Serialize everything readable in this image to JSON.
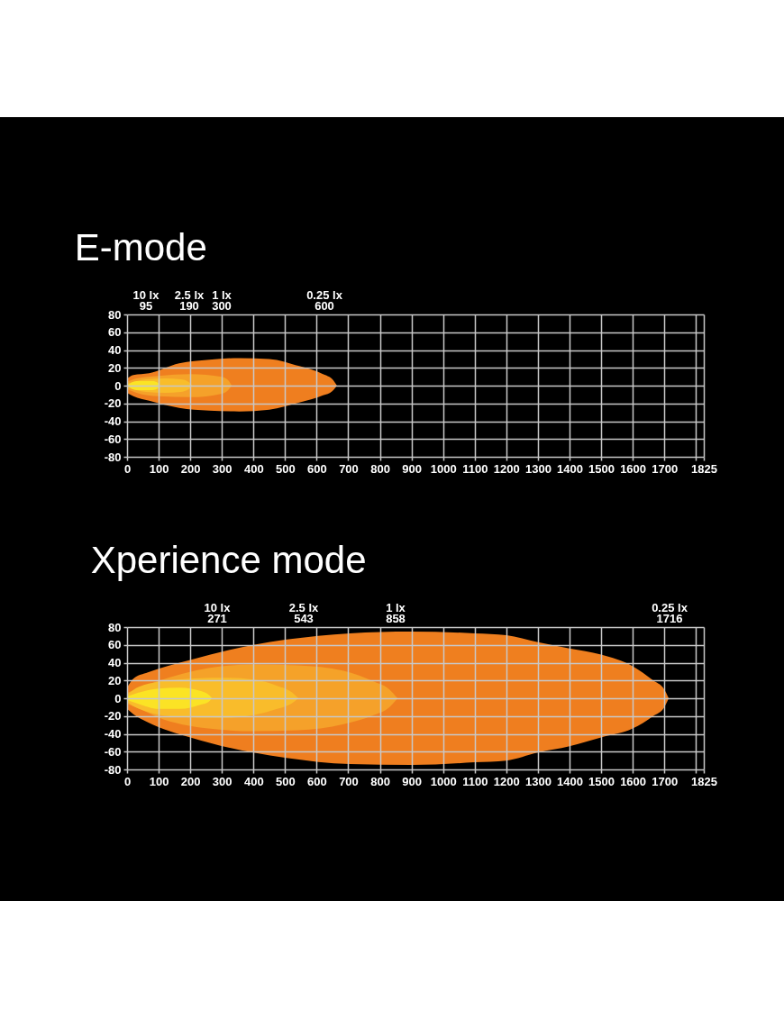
{
  "chart_data": [
    {
      "type": "area",
      "title": "E-mode",
      "series": [
        {
          "color": "#ef7f1f",
          "x": [
            0,
            20,
            70,
            165,
            260,
            355,
            450,
            545,
            620,
            650,
            664
          ],
          "values": [
            8,
            12,
            14,
            25,
            29,
            31,
            30,
            22,
            13,
            7,
            0
          ]
        },
        {
          "color": "#f5a229",
          "x": [
            0,
            30,
            100,
            200,
            300,
            320,
            331
          ],
          "values": [
            4,
            8,
            11,
            13,
            10,
            6,
            0
          ]
        },
        {
          "color": "#f9bd2a",
          "x": [
            0,
            60,
            120,
            170,
            195,
            207
          ],
          "values": [
            2,
            7,
            8,
            7,
            4,
            0
          ]
        },
        {
          "color": "#fbe424",
          "x": [
            0,
            30,
            80,
            98,
            103
          ],
          "values": [
            0,
            5,
            5,
            3,
            0
          ]
        },
        {
          "color": "#ef7e1f",
          "x": [
            0,
            20,
            70,
            165,
            260,
            355,
            450,
            545,
            620,
            650,
            664
          ],
          "values": [
            -8,
            -12,
            -17,
            -25,
            -28,
            -29,
            -27,
            -19,
            -11,
            -6,
            0
          ]
        },
        {
          "color": "#f5a12a",
          "x": [
            0,
            30,
            100,
            200,
            300,
            320,
            331
          ],
          "values": [
            -4,
            -8,
            -12,
            -13,
            -9,
            -5,
            0
          ]
        },
        {
          "color": "#f9bc2b",
          "x": [
            0,
            60,
            120,
            170,
            195,
            207
          ],
          "values": [
            -2,
            -7,
            -8,
            -7,
            -4,
            0
          ]
        },
        {
          "color": "#fbe325",
          "x": [
            0,
            30,
            80,
            98,
            103
          ],
          "values": [
            0,
            -5,
            -5,
            -3,
            0
          ]
        }
      ],
      "xlim": [
        0,
        1825
      ],
      "ylim": [
        -80,
        80
      ],
      "xticks": [
        0,
        100,
        200,
        300,
        400,
        500,
        600,
        700,
        800,
        900,
        1000,
        1100,
        1200,
        1300,
        1400,
        1500,
        1600,
        1700,
        {
          "value": 1800,
          "label": null
        },
        1825
      ],
      "yticks": [
        -80,
        -60,
        -40,
        -20,
        0,
        20,
        40,
        60,
        80
      ],
      "grid": true,
      "annotations": [
        "10 lx\n95",
        "2.5 lx\n190",
        "1 lx\n300",
        "0.25 lx\n600"
      ]
    },
    {
      "type": "area",
      "title": "Xperience mode",
      "series": [
        {
          "color": "#ef7f1f",
          "x": [
            0,
            20,
            66,
            200,
            400,
            505,
            705,
            900,
            1100,
            1200,
            1300,
            1400,
            1500,
            1600,
            1665,
            1700,
            1714
          ],
          "values": [
            12,
            22,
            29,
            43,
            60,
            66,
            73,
            75,
            73,
            71,
            63,
            56,
            49,
            36,
            20,
            10,
            0
          ]
        },
        {
          "color": "#f5a229",
          "x": [
            0,
            40,
            95,
            257,
            400,
            540,
            685,
            780,
            830,
            856
          ],
          "values": [
            6,
            12,
            19,
            34,
            38,
            37,
            31,
            19,
            10,
            0
          ]
        },
        {
          "color": "#f9bd2a",
          "x": [
            0,
            38,
            160,
            305,
            400,
            475,
            520,
            542
          ],
          "values": [
            4,
            13,
            21,
            23,
            21,
            14,
            7,
            0
          ]
        },
        {
          "color": "#fbe424",
          "x": [
            0,
            34,
            100,
            167,
            234,
            258,
            269
          ],
          "values": [
            2,
            6,
            11,
            12,
            8,
            4,
            0
          ]
        },
        {
          "color": "#ef7e1f",
          "x": [
            0,
            20,
            66,
            200,
            400,
            505,
            705,
            900,
            1100,
            1200,
            1300,
            1400,
            1500,
            1600,
            1665,
            1700,
            1714
          ],
          "values": [
            -12,
            -18,
            -27,
            -44,
            -61,
            -67,
            -74,
            -75,
            -72,
            -70,
            -61,
            -54,
            -44,
            -34,
            -20,
            -10,
            0
          ]
        },
        {
          "color": "#f5a12a",
          "x": [
            0,
            40,
            95,
            257,
            400,
            540,
            685,
            780,
            830,
            856
          ],
          "values": [
            -6,
            -12,
            -21,
            -34,
            -37,
            -36,
            -29,
            -19,
            -10,
            0
          ]
        },
        {
          "color": "#f9bc2b",
          "x": [
            0,
            38,
            160,
            305,
            400,
            475,
            520,
            542
          ],
          "values": [
            -4,
            -12,
            -21,
            -22,
            -19,
            -12,
            -6,
            0
          ]
        },
        {
          "color": "#fbe325",
          "x": [
            0,
            34,
            100,
            167,
            234,
            258,
            269
          ],
          "values": [
            -2,
            -6,
            -12,
            -12,
            -7,
            -4,
            0
          ]
        }
      ],
      "xlim": [
        0,
        1825
      ],
      "ylim": [
        -80,
        80
      ],
      "xticks": [
        0,
        100,
        200,
        300,
        400,
        500,
        600,
        700,
        800,
        900,
        1000,
        1100,
        1200,
        1300,
        1400,
        1500,
        1600,
        1700,
        {
          "value": 1800,
          "label": null
        },
        1825
      ],
      "yticks": [
        -80,
        -60,
        -40,
        -20,
        0,
        20,
        40,
        60,
        80
      ],
      "grid": true,
      "annotations": [
        "10 lx\n271",
        "2.5 lx\n543",
        "1 lx\n858",
        "0.25 lx\n1716"
      ]
    }
  ]
}
